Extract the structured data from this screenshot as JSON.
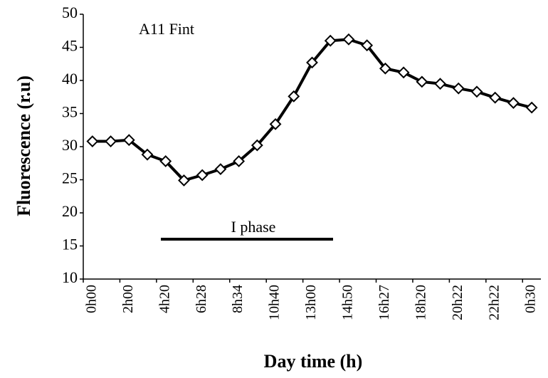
{
  "chart_data": {
    "type": "line",
    "annotations": [
      "A11 Fint",
      "I phase"
    ],
    "x_label": "Day time (h)",
    "y_label": "Fluorescence (r.u)",
    "categories": [
      "0h00",
      null,
      "2h00",
      null,
      "4h20",
      null,
      "6h28",
      null,
      "8h34",
      null,
      "10h40",
      null,
      "13h00",
      null,
      "14h50",
      null,
      "16h27",
      null,
      "18h20",
      null,
      "20h22",
      null,
      "22h22",
      null,
      "0h30"
    ],
    "series": [
      {
        "color": "#000000",
        "values": [
          30.8,
          30.8,
          31.0,
          28.8,
          27.8,
          24.9,
          25.7,
          26.6,
          27.8,
          30.2,
          33.4,
          37.6,
          42.7,
          46.0,
          46.2,
          45.3,
          41.8,
          41.2,
          39.8,
          39.5,
          38.8,
          38.3,
          37.4,
          36.6,
          35.9
        ]
      }
    ],
    "ylim": [
      10,
      50
    ],
    "yticks": [
      10,
      15,
      20,
      25,
      30,
      35,
      40,
      45,
      50
    ],
    "grid": false
  }
}
